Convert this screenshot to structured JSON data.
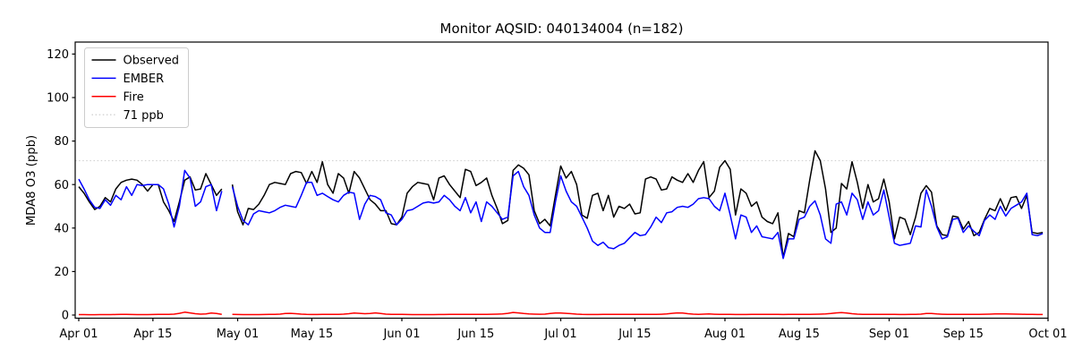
{
  "chart_data": {
    "type": "line",
    "title": "Monitor AQSID: 040134004 (n=182)",
    "ylabel": "MDA8 O3 (ppb)",
    "xlabel": "",
    "grid": false,
    "legend_position": "upper left",
    "ylim": [
      -1.5,
      125.5
    ],
    "yticks": [
      0,
      20,
      40,
      60,
      80,
      100,
      120
    ],
    "x_start_date": "Apr 01",
    "x_end_date": "Oct 01",
    "days_total": 183,
    "missing_day_index": 28,
    "xticks": [
      {
        "day": 0,
        "label": "Apr 01"
      },
      {
        "day": 14,
        "label": "Apr 15"
      },
      {
        "day": 30,
        "label": "May 01"
      },
      {
        "day": 44,
        "label": "May 15"
      },
      {
        "day": 61,
        "label": "Jun 01"
      },
      {
        "day": 75,
        "label": "Jun 15"
      },
      {
        "day": 91,
        "label": "Jul 01"
      },
      {
        "day": 105,
        "label": "Jul 15"
      },
      {
        "day": 122,
        "label": "Aug 01"
      },
      {
        "day": 136,
        "label": "Aug 15"
      },
      {
        "day": 153,
        "label": "Sep 01"
      },
      {
        "day": 167,
        "label": "Sep 15"
      },
      {
        "day": 183,
        "label": "Oct 01"
      }
    ],
    "threshold": {
      "value": 71,
      "label": "71 ppb",
      "color": "#d3d3d3",
      "style": "dotted"
    },
    "series": [
      {
        "name": "Observed",
        "color": "#000000",
        "values": [
          59,
          56,
          52,
          48.5,
          50,
          54,
          52,
          58,
          61,
          62,
          62.5,
          62,
          60,
          57,
          60,
          60,
          52,
          48,
          43,
          52,
          62,
          63.5,
          57.5,
          58,
          65,
          60,
          55,
          58,
          null,
          60,
          47.5,
          41.5,
          49,
          48.5,
          51,
          55,
          60,
          61,
          60.5,
          60,
          65,
          66,
          65.5,
          60.5,
          66,
          61,
          70.5,
          60,
          56,
          65,
          63,
          56,
          66,
          63,
          58,
          53,
          51,
          48,
          48,
          42,
          41.5,
          45,
          56,
          59,
          61,
          60.5,
          60,
          53,
          63,
          64,
          60,
          57,
          54,
          67,
          66,
          59.5,
          61,
          63,
          55,
          49,
          42,
          43.5,
          66.5,
          69,
          67.5,
          64.5,
          48,
          42,
          44,
          41,
          55,
          68.5,
          63,
          66,
          60,
          46,
          44.5,
          55,
          56,
          48,
          55,
          45,
          50,
          49,
          51,
          46.5,
          47,
          62.5,
          63.5,
          62.5,
          57.5,
          58,
          63.5,
          62,
          61,
          65,
          61,
          66.5,
          70.5,
          54,
          57,
          68,
          71,
          67,
          46,
          58,
          56,
          50,
          52,
          45,
          43,
          42,
          47,
          26.5,
          37.5,
          36,
          48,
          47,
          62,
          75.5,
          71,
          58,
          38,
          40,
          60.5,
          58,
          70.5,
          61,
          49,
          60,
          52,
          53.5,
          62.5,
          52,
          35,
          45,
          44,
          37,
          45,
          56,
          59.5,
          56.5,
          41,
          37,
          36.5,
          45.5,
          45,
          39.5,
          43,
          36.5,
          38,
          44,
          49,
          48,
          53.5,
          48,
          54,
          54.5,
          49,
          55,
          38,
          37.5,
          38
        ]
      },
      {
        "name": "EMBER",
        "color": "#0000ff",
        "values": [
          62.5,
          58,
          53,
          49.5,
          49,
          53,
          50.5,
          55,
          53,
          59,
          55,
          60,
          59.5,
          60,
          60,
          60,
          58,
          51,
          40.5,
          50,
          66.5,
          63,
          50,
          52,
          59,
          60,
          48,
          57,
          null,
          59,
          50,
          43.5,
          41.5,
          46.5,
          48,
          47.5,
          47,
          48,
          49.5,
          50.5,
          50,
          49.5,
          55,
          61,
          61,
          55,
          56,
          54.5,
          53,
          52,
          55,
          56.5,
          56,
          44,
          51,
          55,
          54.5,
          53,
          47,
          46,
          41.5,
          44,
          48,
          48.5,
          50,
          51.5,
          52,
          51.5,
          52,
          55,
          53,
          50,
          48,
          54,
          47,
          52,
          43,
          52,
          50,
          47,
          44,
          45,
          64,
          66,
          59,
          55,
          46,
          40,
          38,
          38,
          52,
          64,
          57,
          52,
          50,
          45,
          40,
          34,
          32,
          33.5,
          31,
          30.5,
          32,
          33,
          35.5,
          38,
          36.5,
          37,
          40.5,
          45,
          42.5,
          47,
          47.5,
          49.5,
          50,
          49.5,
          51,
          53.5,
          54,
          53.5,
          50,
          48,
          56,
          46,
          35,
          46,
          45,
          38,
          41,
          36,
          35.5,
          35,
          38,
          26,
          35,
          35,
          44,
          45,
          50,
          52.5,
          46,
          35,
          33,
          51,
          52,
          46,
          56,
          53,
          44,
          52,
          46,
          48,
          57.5,
          45,
          33,
          32,
          32.5,
          33,
          41,
          40.5,
          57.5,
          50,
          40.5,
          35,
          36,
          44,
          44.5,
          38,
          41,
          38.5,
          36.5,
          43.5,
          46,
          44,
          50,
          45.5,
          49,
          50.5,
          52,
          56,
          37,
          36.5,
          37.5
        ]
      },
      {
        "name": "Fire",
        "color": "#ff0000",
        "values": [
          0.2,
          0.2,
          0.15,
          0.15,
          0.2,
          0.2,
          0.2,
          0.25,
          0.3,
          0.3,
          0.25,
          0.2,
          0.2,
          0.2,
          0.25,
          0.3,
          0.3,
          0.3,
          0.4,
          0.8,
          1.3,
          1.0,
          0.6,
          0.4,
          0.5,
          0.9,
          0.7,
          0.3,
          null,
          0.3,
          0.25,
          0.2,
          0.2,
          0.2,
          0.2,
          0.25,
          0.3,
          0.3,
          0.4,
          0.7,
          0.8,
          0.6,
          0.4,
          0.3,
          0.25,
          0.25,
          0.3,
          0.3,
          0.3,
          0.3,
          0.4,
          0.6,
          0.9,
          0.8,
          0.6,
          0.7,
          1.0,
          0.7,
          0.4,
          0.3,
          0.3,
          0.3,
          0.25,
          0.2,
          0.2,
          0.2,
          0.2,
          0.2,
          0.25,
          0.25,
          0.3,
          0.3,
          0.3,
          0.3,
          0.3,
          0.3,
          0.3,
          0.3,
          0.35,
          0.4,
          0.5,
          0.8,
          1.2,
          1.0,
          0.7,
          0.5,
          0.4,
          0.35,
          0.4,
          0.7,
          0.9,
          0.9,
          0.8,
          0.6,
          0.4,
          0.3,
          0.25,
          0.25,
          0.25,
          0.3,
          0.3,
          0.3,
          0.3,
          0.3,
          0.3,
          0.3,
          0.3,
          0.3,
          0.3,
          0.3,
          0.35,
          0.5,
          0.8,
          1.0,
          0.9,
          0.6,
          0.4,
          0.3,
          0.4,
          0.5,
          0.35,
          0.3,
          0.3,
          0.3,
          0.25,
          0.25,
          0.25,
          0.3,
          0.3,
          0.3,
          0.3,
          0.3,
          0.3,
          0.25,
          0.3,
          0.3,
          0.3,
          0.3,
          0.3,
          0.35,
          0.4,
          0.5,
          0.7,
          1.0,
          1.1,
          0.9,
          0.6,
          0.4,
          0.3,
          0.3,
          0.3,
          0.3,
          0.3,
          0.3,
          0.3,
          0.25,
          0.25,
          0.3,
          0.3,
          0.4,
          0.7,
          0.7,
          0.5,
          0.35,
          0.3,
          0.3,
          0.3,
          0.3,
          0.3,
          0.3,
          0.3,
          0.35,
          0.4,
          0.5,
          0.5,
          0.5,
          0.45,
          0.4,
          0.35,
          0.3,
          0.3,
          0.25,
          0.25
        ]
      }
    ],
    "legend_entries": [
      "Observed",
      "EMBER",
      "Fire",
      "71 ppb"
    ]
  }
}
